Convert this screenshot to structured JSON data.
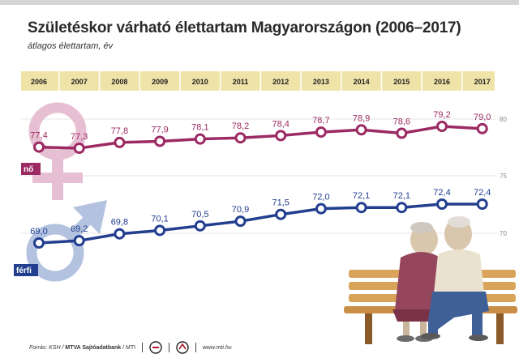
{
  "title": "Születéskor várható élettartam Magyarországon (2006–2017)",
  "subtitle": "átlagos élettartam, év",
  "footer": {
    "source_label": "Forrás: KSH /",
    "agency": "MTVA Sajtóadatbank",
    "agency_suffix": "/ MTI",
    "website": "www.mti.hu"
  },
  "colors": {
    "female": "#9c2a63",
    "male": "#223e8f",
    "female_symbol": "#e7bfd2",
    "male_symbol": "#b2c2df",
    "year_band": "#efe3a8",
    "grid": "#e4e4e4"
  },
  "chart_data": {
    "type": "line",
    "title": "Születéskor várható élettartam Magyarországon (2006–2017)",
    "subtitle": "átlagos élettartam, év",
    "xlabel": "",
    "ylabel": "",
    "categories": [
      "2006",
      "2007",
      "2008",
      "2009",
      "2010",
      "2011",
      "2012",
      "2013",
      "2014",
      "2015",
      "2016",
      "2017"
    ],
    "series": [
      {
        "name": "nő",
        "color": "#9c2a63",
        "values": [
          77.4,
          77.3,
          77.8,
          77.9,
          78.1,
          78.2,
          78.4,
          78.7,
          78.9,
          78.6,
          79.2,
          79.0
        ],
        "labels": [
          "77,4",
          "77,3",
          "77,8",
          "77,9",
          "78,1",
          "78,2",
          "78,4",
          "78,7",
          "78,9",
          "78,6",
          "79,2",
          "79,0"
        ]
      },
      {
        "name": "férfi",
        "color": "#223e8f",
        "values": [
          69.0,
          69.2,
          69.8,
          70.1,
          70.5,
          70.9,
          71.5,
          72.0,
          72.1,
          72.1,
          72.4,
          72.4
        ],
        "labels": [
          "69,0",
          "69,2",
          "69,8",
          "70,1",
          "70,5",
          "70,9",
          "71,5",
          "72,0",
          "72,1",
          "72,1",
          "72,4",
          "72,4"
        ]
      }
    ],
    "yticks": [
      70,
      75,
      80
    ],
    "ytick_labels": [
      "70",
      "75",
      "80"
    ],
    "grid": true
  }
}
